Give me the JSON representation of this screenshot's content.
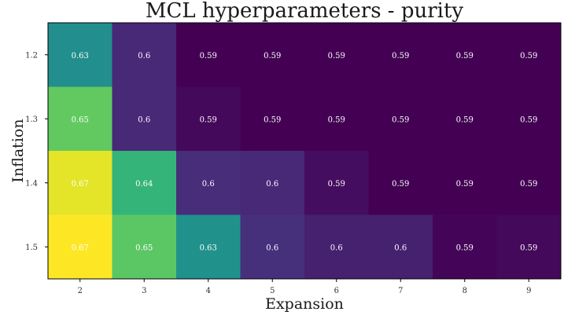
{
  "chart_data": {
    "type": "heatmap",
    "title": "MCL hyperparameters - purity",
    "xlabel": "Expansion",
    "ylabel": "Inflation",
    "x": [
      "2",
      "3",
      "4",
      "5",
      "6",
      "7",
      "8",
      "9"
    ],
    "y": [
      "1.2",
      "1.3",
      "1.4",
      "1.5"
    ],
    "values": [
      [
        0.631,
        0.6,
        0.59,
        0.59,
        0.59,
        0.59,
        0.59,
        0.59
      ],
      [
        0.653,
        0.6,
        0.592,
        0.59,
        0.59,
        0.59,
        0.59,
        0.59
      ],
      [
        0.67,
        0.645,
        0.601,
        0.6,
        0.593,
        0.59,
        0.59,
        0.59
      ],
      [
        0.673,
        0.652,
        0.632,
        0.602,
        0.598,
        0.598,
        0.591,
        0.592
      ]
    ],
    "labels": [
      [
        "0.63",
        "0.6",
        "0.59",
        "0.59",
        "0.59",
        "0.59",
        "0.59",
        "0.59"
      ],
      [
        "0.65",
        "0.6",
        "0.59",
        "0.59",
        "0.59",
        "0.59",
        "0.59",
        "0.59"
      ],
      [
        "0.67",
        "0.64",
        "0.6",
        "0.6",
        "0.59",
        "0.59",
        "0.59",
        "0.59"
      ],
      [
        "0.67",
        "0.65",
        "0.63",
        "0.6",
        "0.6",
        "0.6",
        "0.59",
        "0.59"
      ]
    ],
    "colormap": "viridis",
    "vmin": 0.59,
    "vmax": 0.673,
    "grid": false
  }
}
